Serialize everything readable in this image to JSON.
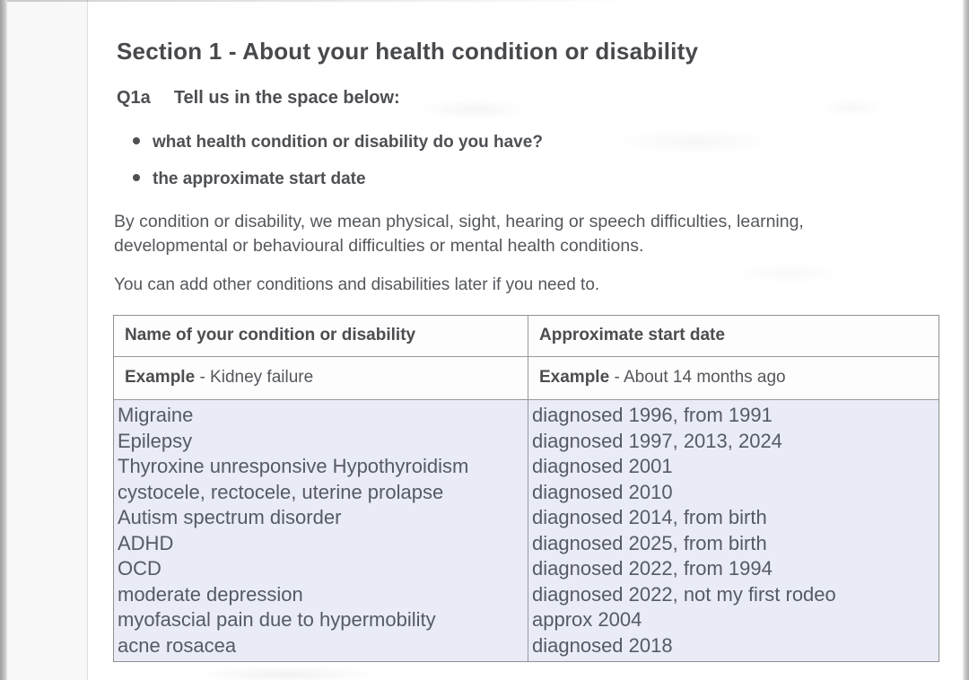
{
  "page": {
    "title": "Section 1 - About your health condition or disability",
    "question_id": "Q1a",
    "question_text": "Tell us in the space below:",
    "bullets": [
      "what health condition or disability do you have?",
      "the approximate start date"
    ],
    "intro_paragraph": "By condition or disability, we mean physical, sight, hearing or speech difficulties, learning, developmental or behavioural difficulties or mental health conditions.",
    "note_paragraph": "You can add other conditions and disabilities later if you need to."
  },
  "table": {
    "headers": {
      "condition": "Name of your condition or disability",
      "start_date": "Approximate start date"
    },
    "example": {
      "label": "Example",
      "condition_suffix": "- Kidney failure",
      "start_date_suffix": "- About 14 months ago"
    },
    "entries": [
      {
        "condition": "Migraine",
        "start_date": "diagnosed 1996, from 1991"
      },
      {
        "condition": "Epilepsy",
        "start_date": "diagnosed 1997, 2013, 2024"
      },
      {
        "condition": "Thyroxine unresponsive Hypothyroidism",
        "start_date": "diagnosed 2001"
      },
      {
        "condition": "cystocele, rectocele, uterine prolapse",
        "start_date": "diagnosed 2010"
      },
      {
        "condition": "Autism spectrum disorder",
        "start_date": "diagnosed 2014, from birth"
      },
      {
        "condition": "ADHD",
        "start_date": "diagnosed 2025, from birth"
      },
      {
        "condition": "OCD",
        "start_date": "diagnosed 2022, from 1994"
      },
      {
        "condition": "moderate depression",
        "start_date": "diagnosed 2022, not my first rodeo"
      },
      {
        "condition": "myofascial pain due to hypermobility",
        "start_date": "approx 2004"
      },
      {
        "condition": "acne rosacea",
        "start_date": "diagnosed 2018"
      }
    ],
    "highlight_color": "#e9ebf6"
  },
  "colors": {
    "paper": "#fdfdfd",
    "body_text": "#54575c",
    "heading_text": "#47494c",
    "table_border": "#8f9094",
    "entry_highlight": "#e9ebf6",
    "scan_edge": "#9d9d9d"
  }
}
